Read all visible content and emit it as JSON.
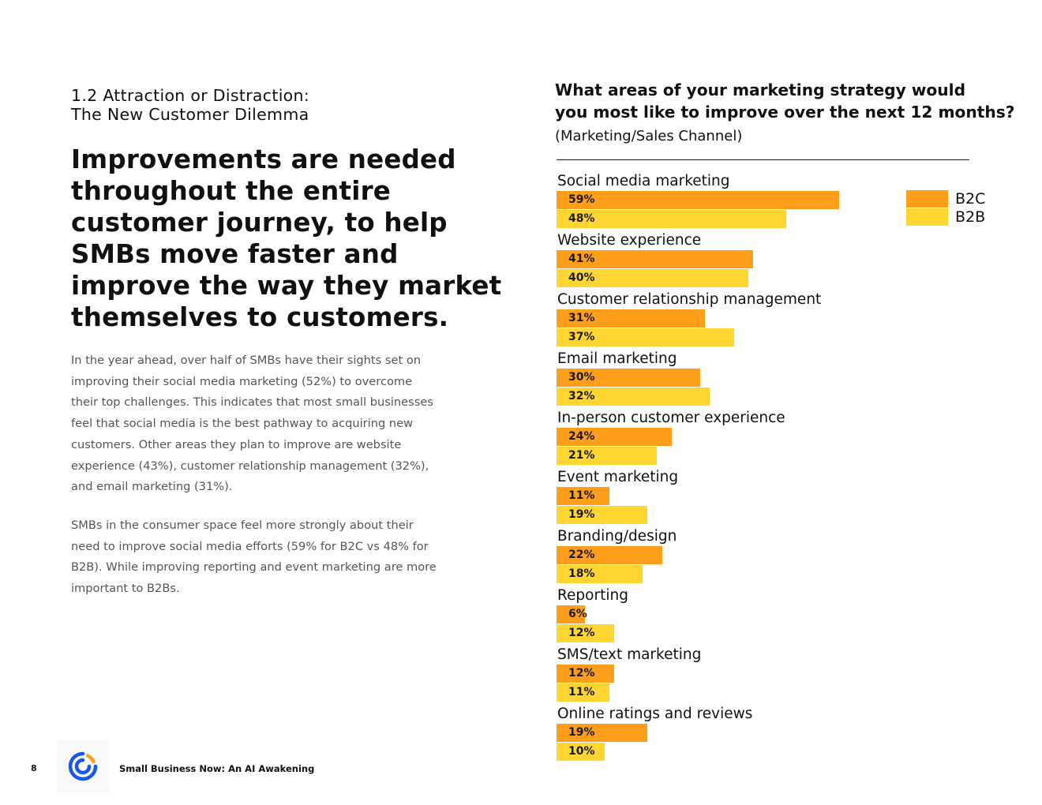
{
  "section": {
    "number_title": "1.2 Attraction or Distraction:",
    "subtitle": "The New Customer Dilemma"
  },
  "headline": {
    "lines": [
      "Improvements are needed",
      "throughout the entire",
      "customer journey, to help",
      "SMBs move faster and",
      "improve the way they market",
      "themselves to customers."
    ]
  },
  "body": {
    "paragraph1_lines": [
      "In the year ahead, over half of SMBs have their sights set on",
      "improving their social media marketing (52%) to overcome",
      "their top challenges. This indicates that most small businesses",
      "feel that social media is the best pathway to acquiring new",
      "customers. Other areas they plan to improve are website",
      "experience (43%), customer relationship management (32%),",
      "and email marketing (31%)."
    ],
    "paragraph2_lines": [
      "SMBs in the consumer space feel more strongly about their",
      "need to improve social media efforts (59% for B2C vs 48% for",
      "B2B). While improving reporting and event marketing are more",
      "important to B2Bs."
    ]
  },
  "chart_data": {
    "type": "bar",
    "orientation": "horizontal",
    "title_lines": [
      "What areas of your marketing strategy would",
      "you most like to improve over the next 12 months?"
    ],
    "subtitle": "(Marketing/Sales Channel)",
    "categories": [
      "Social media marketing",
      "Website experience",
      "Customer relationship management",
      "Email marketing",
      "In-person customer experience",
      "Event marketing",
      "Branding/design",
      "Reporting",
      "SMS/text marketing",
      "Online ratings and reviews"
    ],
    "series": [
      {
        "name": "B2C",
        "color": "#ff9e1b",
        "values": [
          59,
          41,
          31,
          30,
          24,
          11,
          22,
          6,
          12,
          19
        ]
      },
      {
        "name": "B2B",
        "color": "#ffd531",
        "values": [
          48,
          40,
          37,
          32,
          21,
          19,
          18,
          12,
          11,
          10
        ]
      }
    ],
    "value_suffix": "%",
    "legend_position": "top-right",
    "xlim": [
      0,
      100
    ],
    "grid": false
  },
  "footer": {
    "page_number": "8",
    "title": "Small Business Now: An AI Awakening",
    "logo_icon": "constant-contact-logo-icon"
  }
}
